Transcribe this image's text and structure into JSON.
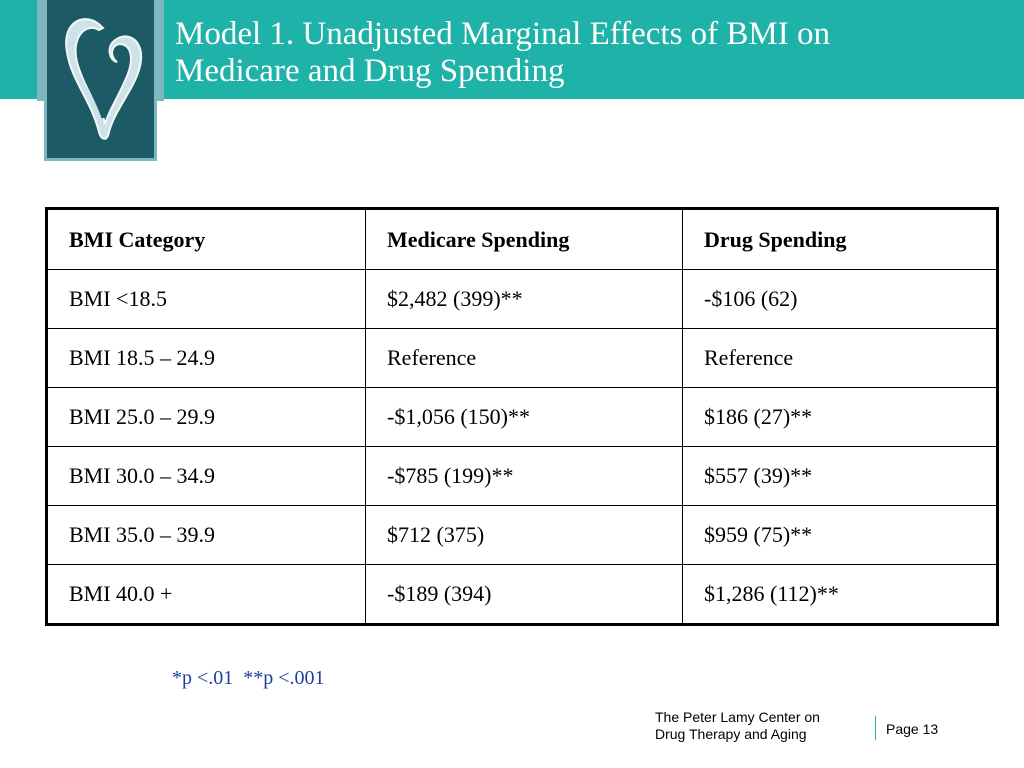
{
  "slide": {
    "title_line1": "Model 1.  Unadjusted Marginal Effects of BMI on",
    "title_line2": "Medicare and Drug Spending",
    "accent_color": "#1fb2a8",
    "logo_color": "#1c5b66"
  },
  "table": {
    "headers": [
      "BMI Category",
      "Medicare Spending",
      "Drug Spending"
    ],
    "rows": [
      [
        "BMI <18.5",
        "$2,482 (399)**",
        "-$106 (62)"
      ],
      [
        "BMI 18.5 – 24.9",
        "Reference",
        "Reference"
      ],
      [
        "BMI 25.0 – 29.9",
        "-$1,056 (150)**",
        "$186 (27)**"
      ],
      [
        "BMI 30.0 – 34.9",
        "-$785 (199)**",
        "$557 (39)**"
      ],
      [
        "BMI 35.0 – 39.9",
        "$712 (375)",
        "$959 (75)**"
      ],
      [
        "BMI 40.0 +",
        "-$189 (394)",
        "$1,286 (112)**"
      ]
    ]
  },
  "footnote": "*p <.01  **p <.001",
  "footer": {
    "center_line1": "The Peter Lamy Center on",
    "center_line2": "Drug Therapy and Aging",
    "page": "Page 13"
  }
}
